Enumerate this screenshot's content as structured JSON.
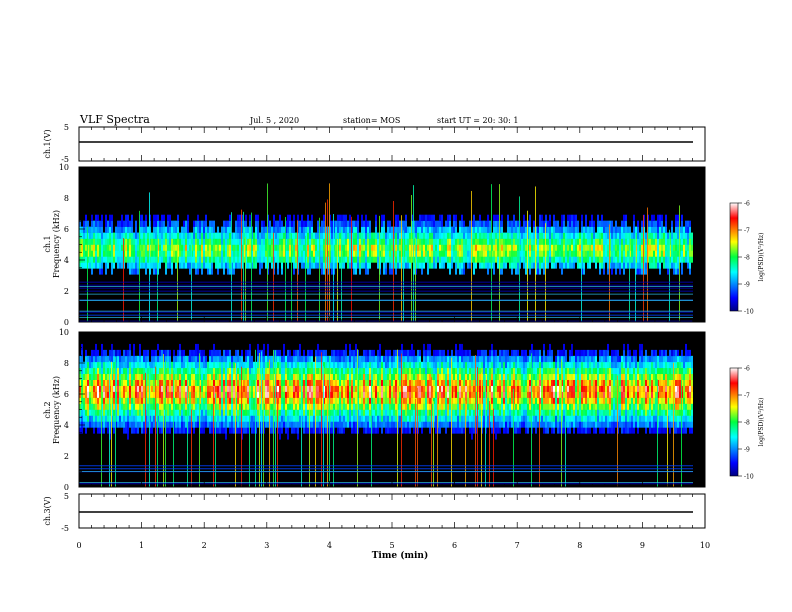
{
  "header": {
    "title": "VLF Spectra",
    "date": "Jul. 5 , 2020",
    "station": "station= MOS",
    "start": "start UT = 20: 30: 1"
  },
  "chart_data": [
    {
      "type": "line",
      "name": "ch1-voltage",
      "ylabel": "ch.1(V)",
      "ylim": [
        -5,
        5
      ],
      "yticks": [
        "5",
        "-5"
      ],
      "x": [
        0,
        9.8
      ],
      "y": [
        0,
        0
      ]
    },
    {
      "type": "heatmap",
      "name": "ch1-spectrogram",
      "ylabel": "ch.1\nFrequency (kHz)",
      "ylim": [
        0,
        10
      ],
      "yticks": [
        "0",
        "2",
        "4",
        "6",
        "8",
        "10"
      ],
      "colorbar_label": "log(PSD)(V²/Hz)",
      "colorbar_range": [
        -10,
        -6
      ],
      "colorbar_ticks": [
        "-6",
        "-7",
        "-8",
        "-9",
        "-10"
      ]
    },
    {
      "type": "heatmap",
      "name": "ch2-spectrogram",
      "ylabel": "ch.2\nFrequency (kHz)",
      "ylim": [
        0,
        10
      ],
      "yticks": [
        "0",
        "2",
        "4",
        "6",
        "8",
        "10"
      ],
      "colorbar_label": "log(PSD)(V²/Hz)",
      "colorbar_range": [
        -10,
        -6
      ],
      "colorbar_ticks": [
        "-6",
        "-7",
        "-8",
        "-9",
        "-10"
      ]
    },
    {
      "type": "line",
      "name": "ch3-voltage",
      "ylabel": "ch.3(V)",
      "ylim": [
        -5,
        5
      ],
      "yticks": [
        "5",
        "-5"
      ],
      "x": [
        0,
        9.8
      ],
      "y": [
        0,
        0
      ]
    }
  ],
  "xaxis": {
    "label": "Time (min)",
    "xlim": [
      0,
      10
    ],
    "ticks": [
      "0",
      "1",
      "2",
      "3",
      "4",
      "5",
      "6",
      "7",
      "8",
      "9",
      "10"
    ]
  }
}
